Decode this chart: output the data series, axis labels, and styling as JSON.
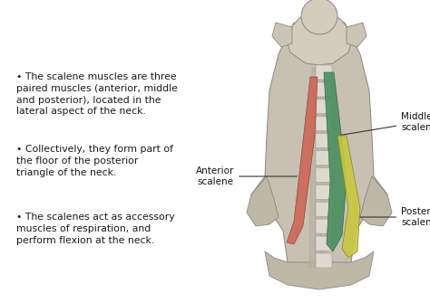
{
  "background_color": "#ffffff",
  "bullet_points": [
    "The scalene muscles are three\npaired muscles (anterior, middle\nand posterior), located in the\nlateral aspect of the neck.",
    "Collectively, they form part of\nthe floor of the posterior\ntriangle of the neck.",
    "The scalenes act as accessory\nmuscles of respiration, and\nperform flexion at the neck."
  ],
  "text_fontsize": 7.8,
  "bullet_color": "#1a1a1a",
  "label_anterior": "Anterior\nscalene",
  "label_middle": "Middle\nscalene",
  "label_posterior": "Posterior\nscalene",
  "color_anterior": "#cc6655",
  "color_middle": "#4a9060",
  "color_posterior": "#c8c840",
  "neck_body": "#c8c0b0",
  "neck_edge": "#888880",
  "vert_fill": "#dedad0",
  "vert_edge": "#aaa898",
  "skull_fill": "#d4ccbc",
  "muscle_bg": "#b8b0a0"
}
